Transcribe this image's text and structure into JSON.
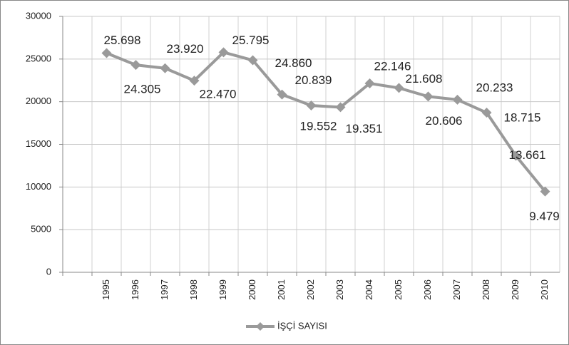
{
  "chart_data": {
    "type": "line",
    "categories": [
      null,
      "1995",
      "1996",
      "1997",
      "1998",
      "1999",
      "2000",
      "2001",
      "2002",
      "2003",
      "2004",
      "2005",
      "2006",
      "2007",
      "2008",
      "2009",
      "2010"
    ],
    "series": [
      {
        "name": "İŞÇİ SAYISI",
        "color": "#9a9a9a",
        "values": [
          null,
          25698,
          24305,
          23920,
          22470,
          25795,
          24860,
          20839,
          19552,
          19351,
          22146,
          21608,
          20606,
          20233,
          18715,
          13661,
          9479
        ],
        "value_labels": [
          null,
          "25.698",
          "24.305",
          "23.920",
          "22.470",
          "25.795",
          "24.860",
          "20.839",
          "19.552",
          "19.351",
          "22.146",
          "21.608",
          "20.606",
          "20.233",
          "18.715",
          "13.661",
          "9.479"
        ]
      }
    ],
    "ylim": [
      0,
      30000
    ],
    "yticks": [
      0,
      5000,
      10000,
      15000,
      20000,
      25000,
      30000
    ],
    "grid": true,
    "legend": "bottom"
  }
}
